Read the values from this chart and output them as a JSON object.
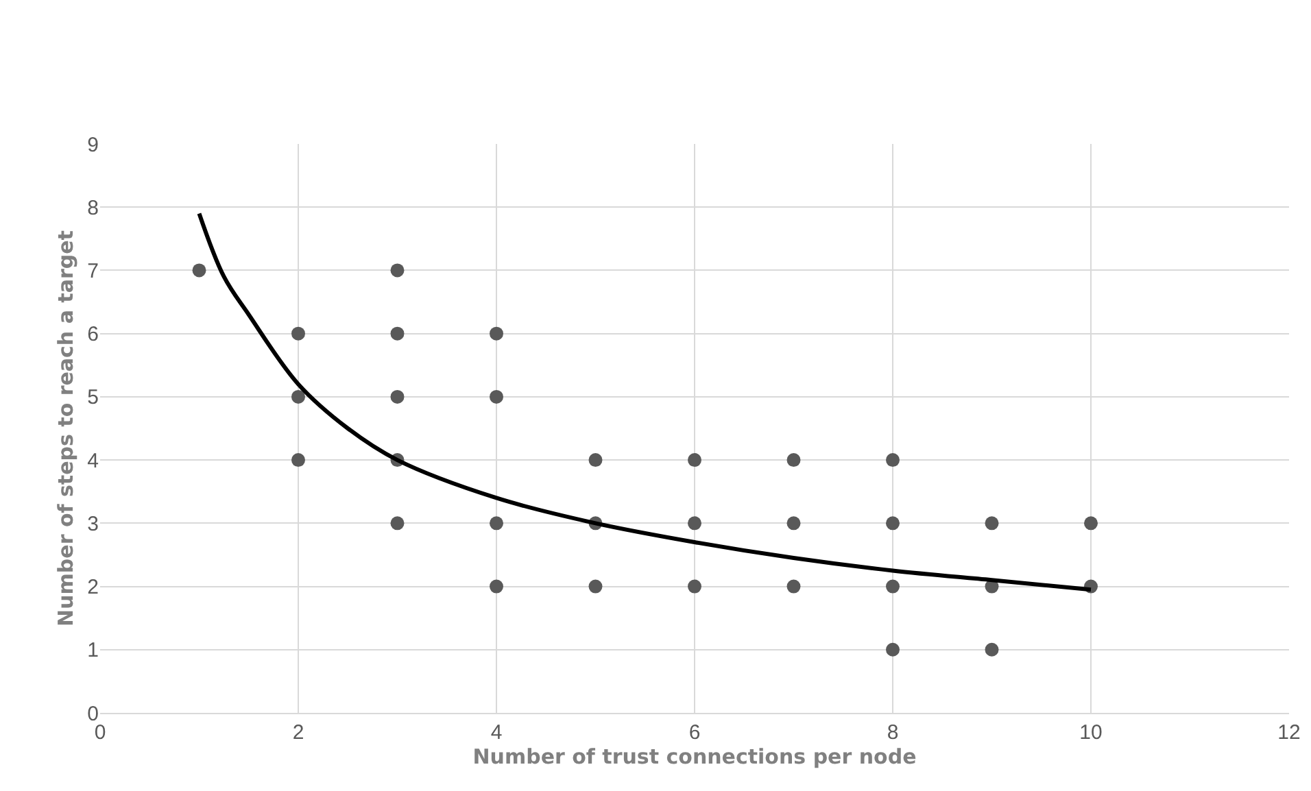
{
  "chart_data": {
    "type": "scatter",
    "xlabel": "Number of trust connections per node",
    "ylabel": "Number of steps to reach a target",
    "xlim": [
      0,
      12
    ],
    "xticks": [
      0,
      2,
      4,
      6,
      8,
      10,
      12
    ],
    "ylim": [
      0,
      9
    ],
    "yticks": [
      0,
      1,
      2,
      3,
      4,
      5,
      6,
      7,
      8,
      9
    ],
    "grid": true,
    "legend": false,
    "series": [
      {
        "marker": "circle",
        "color": "#595959",
        "x": [
          1,
          2,
          2,
          2,
          3,
          3,
          3,
          3,
          3,
          4,
          4,
          4,
          4,
          5,
          5,
          5,
          6,
          6,
          6,
          7,
          7,
          7,
          8,
          8,
          8,
          8,
          9,
          9,
          9,
          10,
          10
        ],
        "values": [
          7,
          6,
          5,
          4,
          7,
          6,
          5,
          4,
          3,
          6,
          5,
          3,
          2,
          4,
          3,
          2,
          4,
          3,
          2,
          4,
          3,
          2,
          4,
          3,
          2,
          1,
          3,
          2,
          1,
          3,
          2
        ]
      },
      {
        "type": "line",
        "marker": "none",
        "color": "#000000",
        "x": [
          1,
          1.25,
          1.5,
          2,
          2.5,
          3,
          4,
          5,
          6,
          7,
          8,
          9,
          10
        ],
        "values": [
          7.9,
          6.9,
          6.3,
          5.2,
          4.5,
          4.0,
          3.4,
          3.0,
          2.7,
          2.45,
          2.25,
          2.1,
          1.95
        ]
      }
    ]
  }
}
